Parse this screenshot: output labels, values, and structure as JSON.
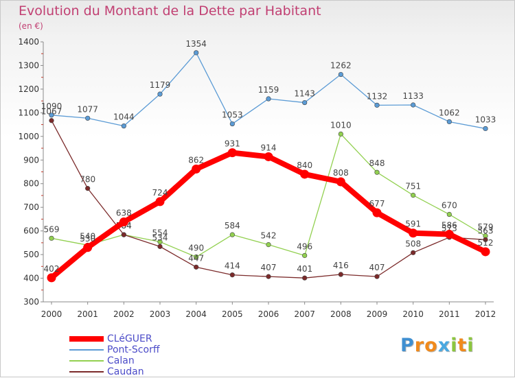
{
  "title": "Evolution du Montant de la Dette par Habitant",
  "subtitle": "(en €)",
  "brand": {
    "letters": [
      "P",
      "r",
      "o",
      "x",
      "i",
      "t",
      "i"
    ],
    "colors": [
      "#3f8fd1",
      "#f08a1c",
      "#f08a1c",
      "#4aa8e0",
      "#8cc63e",
      "#f08a1c",
      "#8cc63e"
    ]
  },
  "chart_data": {
    "type": "line",
    "x": [
      "2000",
      "2001",
      "2002",
      "2003",
      "2004",
      "2005",
      "2006",
      "2007",
      "2008",
      "2009",
      "2010",
      "2011",
      "2012"
    ],
    "ylim": [
      300,
      1400
    ],
    "yticks": [
      "300",
      "400",
      "500",
      "600",
      "700",
      "800",
      "900",
      "1000",
      "1100",
      "1200",
      "1300",
      "1400"
    ],
    "grid": false,
    "legend": "bottom-left",
    "series": [
      {
        "name": "Pont-Scorff",
        "color": "#5b9bd5",
        "values": [
          1090,
          1077,
          1044,
          1179,
          1354,
          1053,
          1159,
          1143,
          1262,
          1132,
          1133,
          1062,
          1033
        ],
        "labels": [
          "1090",
          "1077",
          "1044",
          "1179",
          "1354",
          "1053",
          "1159",
          "1143",
          "1262",
          "1132",
          "1133",
          "1062",
          "1033"
        ]
      },
      {
        "name": "Calan",
        "color": "#92d050",
        "values": [
          569,
          540,
          584,
          554,
          490,
          584,
          542,
          496,
          1010,
          848,
          751,
          670,
          579
        ],
        "labels": [
          "569",
          "540",
          "584",
          "554",
          "490",
          "584",
          "542",
          "496",
          "1010",
          "848",
          "751",
          "670",
          "579"
        ]
      },
      {
        "name": "Caudan",
        "color": "#7b2a2a",
        "values": [
          1067,
          780,
          584,
          534,
          447,
          414,
          407,
          401,
          416,
          407,
          508,
          573,
          563
        ],
        "labels": [
          "1067",
          "780",
          "584",
          "534",
          "447",
          "414",
          "407",
          "401",
          "416",
          "407",
          "508",
          "573",
          "563"
        ]
      },
      {
        "name": "CLéGUER",
        "color": "#ff0000",
        "values": [
          402,
          530,
          638,
          724,
          862,
          931,
          914,
          840,
          808,
          677,
          591,
          586,
          512
        ],
        "labels": [
          "402",
          "530",
          "638",
          "724",
          "862",
          "931",
          "914",
          "840",
          "808",
          "677",
          "591",
          "586",
          "512"
        ]
      }
    ],
    "legend_order": [
      "CLéGUER",
      "Pont-Scorff",
      "Calan",
      "Caudan"
    ]
  }
}
